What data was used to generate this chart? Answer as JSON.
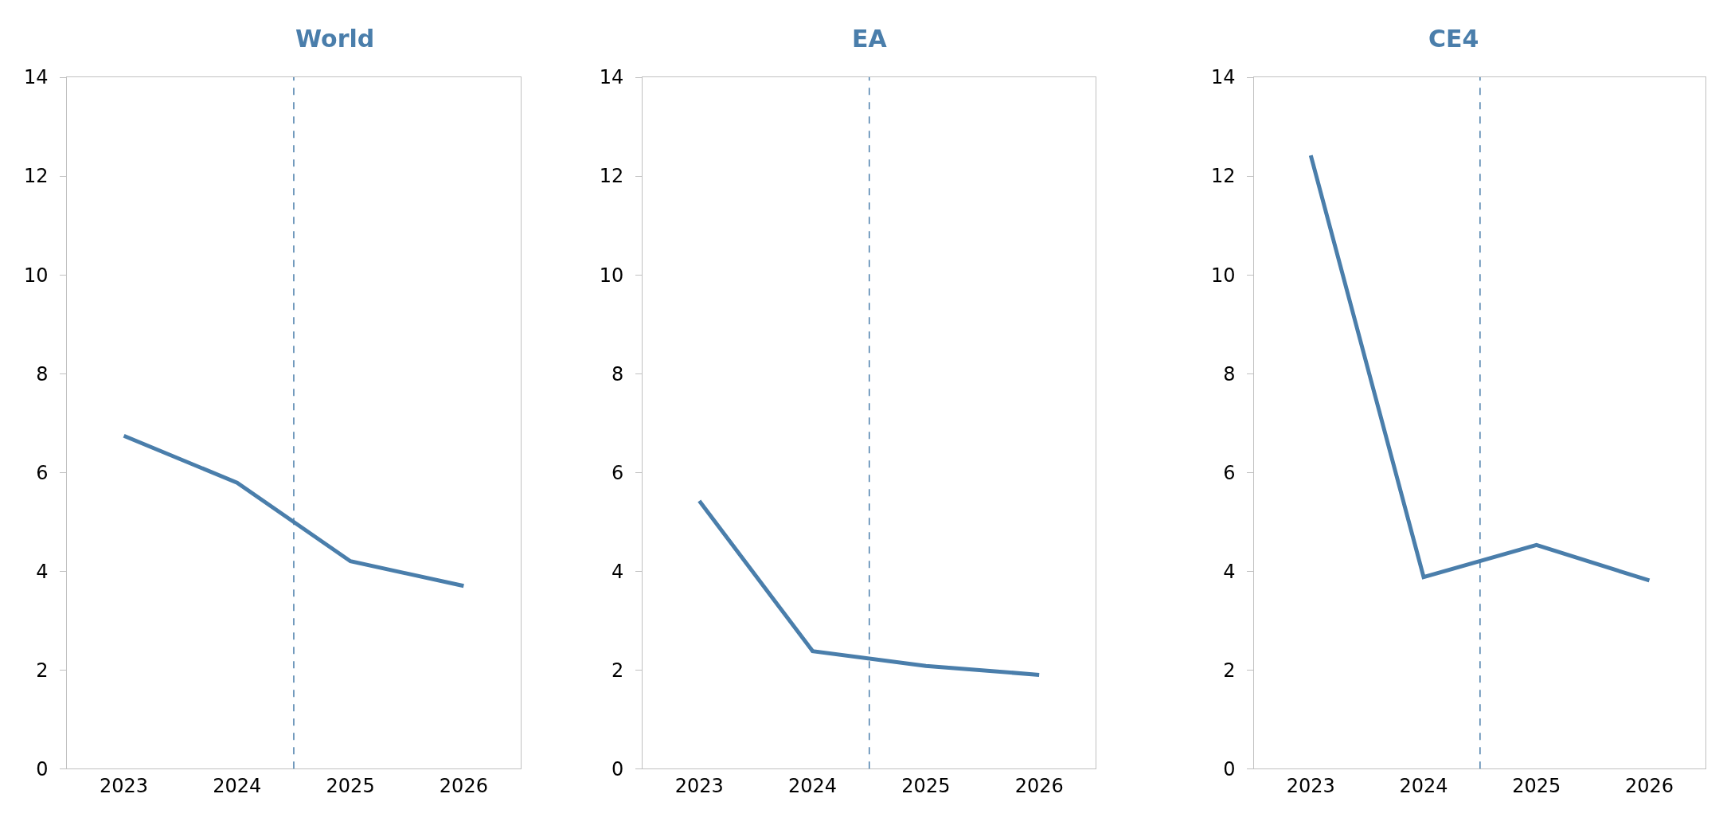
{
  "chart_data": [
    {
      "type": "line",
      "title": "World",
      "x": [
        2023,
        2024,
        2025,
        2026
      ],
      "xlim": [
        2022.5,
        2026.5
      ],
      "xticks": [
        2023,
        2024,
        2025,
        2026
      ],
      "series": [
        {
          "color": "#4a7eab",
          "values": [
            6.74,
            5.79,
            4.2,
            3.7
          ]
        }
      ],
      "ylim": [
        0,
        14
      ],
      "yticks": [
        0,
        2,
        4,
        6,
        8,
        10,
        12,
        14
      ],
      "ref_lines": [
        {
          "axis": "x",
          "value": 2024.5,
          "color": "#4a7eab",
          "line_style": "dashed"
        }
      ]
    },
    {
      "type": "line",
      "title": "EA",
      "x": [
        2023,
        2024,
        2025,
        2026
      ],
      "xlim": [
        2022.5,
        2026.5
      ],
      "xticks": [
        2023,
        2024,
        2025,
        2026
      ],
      "series": [
        {
          "color": "#4a7eab",
          "values": [
            5.42,
            2.38,
            2.08,
            1.9
          ]
        }
      ],
      "ylim": [
        0,
        14
      ],
      "yticks": [
        0,
        2,
        4,
        6,
        8,
        10,
        12,
        14
      ],
      "ref_lines": [
        {
          "axis": "x",
          "value": 2024.5,
          "color": "#4a7eab",
          "line_style": "dashed"
        }
      ]
    },
    {
      "type": "line",
      "title": "CE4",
      "x": [
        2023,
        2024,
        2025,
        2026
      ],
      "xlim": [
        2022.5,
        2026.5
      ],
      "xticks": [
        2023,
        2024,
        2025,
        2026
      ],
      "series": [
        {
          "color": "#4a7eab",
          "values": [
            12.42,
            3.88,
            4.53,
            3.81
          ]
        }
      ],
      "ylim": [
        0,
        14
      ],
      "yticks": [
        0,
        2,
        4,
        6,
        8,
        10,
        12,
        14
      ],
      "ref_lines": [
        {
          "axis": "x",
          "value": 2024.5,
          "color": "#4a7eab",
          "line_style": "dashed"
        }
      ]
    }
  ]
}
